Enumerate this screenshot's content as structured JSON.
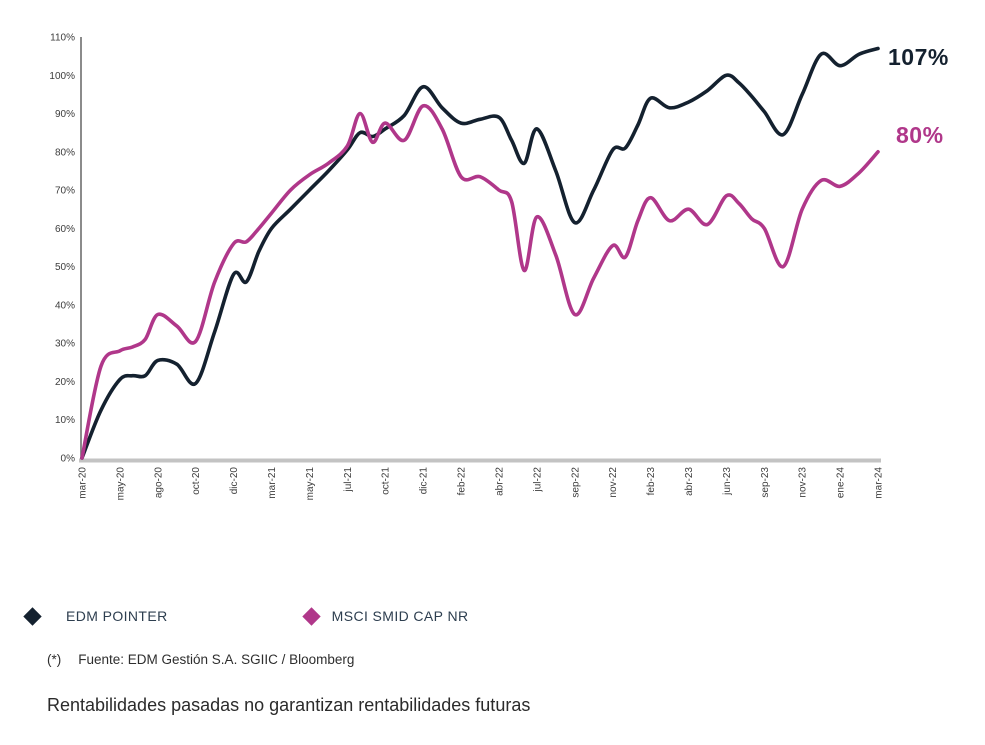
{
  "chart_data": {
    "type": "line",
    "title": "",
    "x_months": [
      "mar-20",
      "abr-20",
      "may-20",
      "jun-20",
      "jul-20",
      "ago-20",
      "sep-20",
      "oct-20",
      "nov-20",
      "dic-20",
      "ene-21",
      "feb-21",
      "mar-21",
      "abr-21",
      "may-21",
      "jun-21",
      "jul-21",
      "ago-21",
      "sep-21",
      "oct-21",
      "nov-21",
      "dic-21",
      "ene-22",
      "feb-22",
      "mar-22",
      "abr-22",
      "may-22",
      "jun-22",
      "jul-22",
      "ago-22",
      "sep-22",
      "oct-22",
      "nov-22",
      "dic-22",
      "ene-23",
      "feb-23",
      "mar-23",
      "abr-23",
      "may-23",
      "jun-23",
      "jul-23",
      "ago-23",
      "sep-23",
      "oct-23",
      "nov-23",
      "dic-23",
      "ene-24",
      "feb-24",
      "mar-24"
    ],
    "series": [
      {
        "name": "EDM POINTER",
        "color": "#14212f",
        "end_label": "107%",
        "values": [
          0,
          12.5,
          20.5,
          21.5,
          21.5,
          25.5,
          24.5,
          19.5,
          33,
          48,
          46,
          54,
          60,
          65,
          70,
          75,
          80.5,
          85,
          84,
          86,
          89.5,
          97,
          91.5,
          87.5,
          88.5,
          89,
          83,
          77,
          86,
          75,
          61.5,
          70,
          80.5,
          81,
          87,
          94,
          91.5,
          93,
          96,
          100,
          98,
          94.5,
          90.5,
          84.5,
          95,
          105.5,
          102.5,
          105.5,
          107
        ]
      },
      {
        "name": "MSCI SMID CAP NR",
        "color": "#b0378a",
        "end_label": "80%",
        "values": [
          0,
          24,
          28,
          29,
          31,
          37.5,
          34.5,
          30.5,
          46,
          56,
          56.5,
          60,
          64,
          70,
          74,
          77,
          81.5,
          90,
          82.5,
          87.5,
          83,
          92,
          86,
          73.5,
          73.5,
          70,
          67,
          49,
          63,
          53,
          37.5,
          47,
          55.5,
          52.5,
          62,
          68,
          62,
          65,
          61,
          68.5,
          66.5,
          62.5,
          60,
          50,
          65,
          72.5,
          71,
          74.5,
          80
        ]
      }
    ],
    "x_tick_labels": [
      "mar-20",
      "may-20",
      "ago-20",
      "oct-20",
      "dic-20",
      "mar-21",
      "may-21",
      "jul-21",
      "oct-21",
      "dic-21",
      "feb-22",
      "abr-22",
      "jul-22",
      "sep-22",
      "nov-22",
      "feb-23",
      "abr-23",
      "jun-23",
      "sep-23",
      "nov-23",
      "ene-24",
      "mar-24"
    ],
    "x_tick_month_index": [
      0,
      2,
      5,
      7,
      9,
      12,
      14,
      16,
      19,
      21,
      23,
      25,
      28,
      30,
      32,
      35,
      37,
      39,
      42,
      44,
      46,
      48
    ],
    "y_ticks": [
      "0%",
      "10%",
      "20%",
      "30%",
      "40%",
      "50%",
      "60%",
      "70%",
      "80%",
      "90%",
      "100%",
      "110%"
    ],
    "ylim": [
      0,
      110
    ],
    "grid": false,
    "legend_position": "bottom-left"
  },
  "legend": {
    "items": [
      {
        "label": "EDM POINTER",
        "color": "#14212f"
      },
      {
        "label": "MSCI SMID CAP NR",
        "color": "#b0378a"
      }
    ]
  },
  "footnote": {
    "marker": "(*)",
    "text": "Fuente: EDM Gestión S.A. SGIIC / Bloomberg"
  },
  "disclaimer": "Rentabilidades pasadas no garantizan rentabilidades futuras",
  "colors": {
    "x_axis_line": "#c3c3c3",
    "y_axis_line": "#6e6e6e",
    "tick_text": "#3c3c3c"
  }
}
